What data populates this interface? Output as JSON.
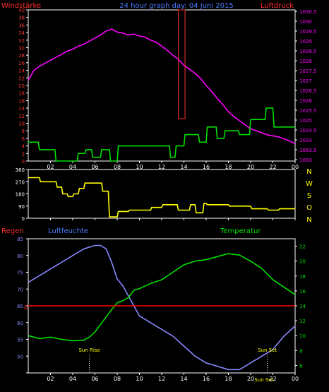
{
  "header": {
    "left_label": "Windstärke",
    "center_label": "24 hour graph day: 04 Juni 2015",
    "right_label": "Luftdruck"
  },
  "direction_labels": [
    "N",
    "W",
    "S",
    "O",
    "N"
  ],
  "colors": {
    "background": "#000000",
    "axis": "#ffffff",
    "red": "#ff3030",
    "magenta": "#ff00ff",
    "green": "#00e000",
    "yellow": "#ffff00",
    "lavender": "#8888ff",
    "blue_text": "#4a7dff",
    "rain_line": "#ff0000"
  },
  "x_tick_labels": [
    "02",
    "04",
    "06",
    "08",
    "10",
    "12",
    "14",
    "16",
    "18",
    "20",
    "22",
    "00"
  ],
  "chart_data": [
    {
      "type": "line",
      "name": "top",
      "xlim": [
        0,
        24
      ],
      "left_axis": {
        "label": "Windstärke",
        "ylim": [
          0,
          40
        ],
        "ticks": [
          0,
          2,
          4,
          6,
          8,
          10,
          12,
          14,
          16,
          18,
          20,
          22,
          24,
          26,
          28,
          30,
          32,
          34,
          36,
          38,
          40
        ]
      },
      "right_axis": {
        "label": "Luftdruck",
        "ylim": [
          1082.75,
          1030.5
        ],
        "ticks": [
          "1030.5",
          "1030",
          "1029.5",
          "1029",
          "1028.5",
          "1028",
          "1027.5",
          "1027",
          "1026.5",
          "1026",
          "1025.5",
          "1025",
          "1024.5",
          "1024",
          "1083.5",
          "1083"
        ]
      },
      "series": [
        {
          "color": "magenta",
          "axis": "right",
          "x": [
            0,
            0.5,
            1,
            1.5,
            2,
            2.5,
            3,
            3.5,
            4,
            4.5,
            5,
            5.5,
            6,
            6.5,
            7,
            7.5,
            8,
            8.5,
            9,
            9.5,
            10,
            10.5,
            11,
            11.5,
            12,
            12.5,
            13,
            13.5,
            14,
            14.5,
            15,
            15.5,
            16,
            16.5,
            17,
            17.5,
            18,
            18.5,
            19,
            19.5,
            20,
            20.5,
            21,
            21.5,
            22,
            22.5,
            23,
            23.5,
            24
          ],
          "y": [
            1027.0,
            1027.5,
            1027.7,
            1027.85,
            1028.0,
            1028.15,
            1028.3,
            1028.45,
            1028.55,
            1028.7,
            1028.8,
            1028.95,
            1029.1,
            1029.25,
            1029.45,
            1029.55,
            1029.4,
            1029.35,
            1029.25,
            1029.3,
            1029.2,
            1029.15,
            1029.0,
            1028.9,
            1028.7,
            1028.5,
            1028.25,
            1028.05,
            1027.75,
            1027.55,
            1027.35,
            1027.1,
            1026.75,
            1026.45,
            1026.1,
            1025.8,
            1025.45,
            1025.2,
            1025.0,
            1024.8,
            1024.6,
            1024.5,
            1024.4,
            1024.3,
            1024.25,
            1024.2,
            1024.1,
            1024.0,
            1023.85
          ]
        },
        {
          "color": "green",
          "axis": "left",
          "step": true,
          "x": [
            0,
            0.9,
            1.0,
            2.4,
            2.5,
            4.4,
            4.5,
            5.1,
            5.2,
            5.7,
            5.8,
            6.5,
            6.6,
            7.3,
            7.4,
            8.0,
            8.1,
            12.7,
            12.8,
            13.2,
            13.3,
            14.0,
            14.1,
            15.3,
            15.4,
            16.0,
            16.1,
            16.9,
            17.0,
            17.6,
            17.7,
            18.9,
            19.0,
            19.9,
            20.0,
            21.3,
            21.4,
            22.0,
            22.1,
            24
          ],
          "y": [
            5,
            5,
            3,
            3,
            0,
            0,
            2,
            2,
            3,
            3,
            1,
            1,
            3,
            3,
            0,
            0,
            4,
            4,
            1,
            1,
            4,
            4,
            7,
            7,
            5,
            5,
            9,
            9,
            6,
            6,
            8,
            8,
            7,
            7,
            11,
            11,
            14,
            14,
            9,
            9
          ]
        },
        {
          "color": "red",
          "axis": "left",
          "note": "rectangle",
          "x": [
            13.5,
            14.1
          ],
          "y": [
            0,
            40
          ]
        }
      ]
    },
    {
      "type": "line",
      "name": "wind-direction",
      "xlim": [
        0,
        24
      ],
      "ylim": [
        0,
        360
      ],
      "ticks": [
        0,
        90,
        180,
        270,
        360
      ],
      "series": [
        {
          "color": "yellow",
          "step": true,
          "x": [
            0,
            1.0,
            1.1,
            2.5,
            2.6,
            3.0,
            3.1,
            3.5,
            3.6,
            4.0,
            4.1,
            4.5,
            4.6,
            5.0,
            5.1,
            6.6,
            6.7,
            7.2,
            7.3,
            8.0,
            8.1,
            9.0,
            9.1,
            11.0,
            11.1,
            12.0,
            12.1,
            13.4,
            13.5,
            14.5,
            14.6,
            15.0,
            15.1,
            15.7,
            15.8,
            16.0,
            16.1,
            18.0,
            18.1,
            20.0,
            20.1,
            21.5,
            21.6,
            22.5,
            22.6,
            24
          ],
          "y": [
            300,
            300,
            270,
            270,
            230,
            230,
            180,
            180,
            160,
            160,
            180,
            180,
            220,
            220,
            260,
            260,
            200,
            200,
            10,
            10,
            50,
            50,
            60,
            60,
            80,
            80,
            100,
            100,
            60,
            60,
            100,
            100,
            40,
            40,
            110,
            110,
            100,
            100,
            90,
            90,
            70,
            70,
            60,
            60,
            70,
            70
          ]
        }
      ]
    },
    {
      "type": "line",
      "name": "bottom",
      "xlim": [
        0,
        24
      ],
      "left_axis": {
        "label": "Luftfeuchte",
        "ylim": [
          45,
          85
        ],
        "ticks": [
          45,
          50,
          55,
          60,
          65,
          70,
          75,
          80,
          85
        ]
      },
      "right_axis": {
        "label": "Temperatur",
        "ylim": [
          5,
          23
        ],
        "ticks": [
          6,
          8,
          10,
          12,
          14,
          16,
          18,
          20,
          22
        ]
      },
      "rain_label": "Regen",
      "rain_value": 0,
      "series": [
        {
          "color": "lavender",
          "axis": "left",
          "x": [
            0,
            1,
            2,
            3,
            4,
            5,
            6,
            6.5,
            7,
            7.5,
            8,
            8.5,
            9,
            9.5,
            10,
            11,
            12,
            13,
            14,
            15,
            16,
            17,
            18,
            19,
            20,
            21,
            22,
            23,
            24
          ],
          "y": [
            72,
            74,
            76,
            78,
            80,
            82,
            83,
            83,
            82,
            78,
            73,
            71,
            68,
            65,
            62,
            60,
            58,
            56,
            53,
            50,
            48,
            47,
            46,
            46,
            48,
            50,
            52,
            56,
            59
          ]
        },
        {
          "color": "green",
          "axis": "right",
          "x": [
            0,
            1,
            2,
            3,
            4,
            5,
            5.5,
            6,
            6.5,
            7,
            7.5,
            8,
            8.5,
            9,
            9.5,
            10,
            11,
            12,
            13,
            14,
            15,
            16,
            17,
            18,
            19,
            20,
            21,
            22,
            23,
            24
          ],
          "y": [
            10,
            9.6,
            9.8,
            9.5,
            9.3,
            9.4,
            9.8,
            10.5,
            11.5,
            12.5,
            13.5,
            14.4,
            14.7,
            15.1,
            16.1,
            16.3,
            17,
            17.5,
            18.5,
            19.5,
            20,
            20.2,
            20.6,
            21,
            20.8,
            20,
            19,
            17.5,
            16.5,
            15.5
          ]
        },
        {
          "color": "rain_line",
          "axis": "rain",
          "x": [
            0,
            24
          ],
          "y": [
            0,
            0
          ]
        }
      ],
      "annotations": [
        {
          "text": "Sun Rise",
          "x": 5.5
        },
        {
          "text": "Sun Set",
          "x": 21.5
        },
        {
          "text": "Sun Set",
          "x": 21.2
        }
      ]
    }
  ]
}
